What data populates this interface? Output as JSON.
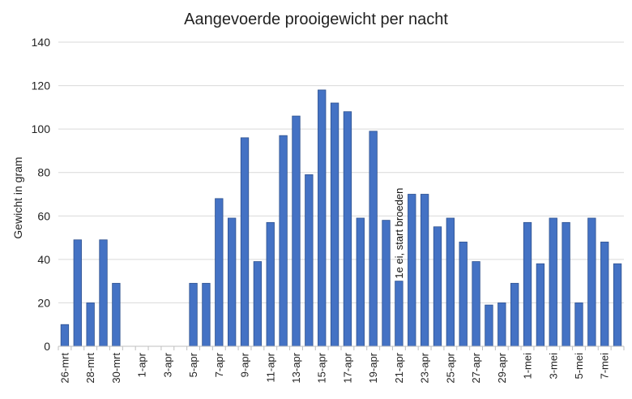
{
  "chart_data": {
    "type": "bar",
    "title": "Aangevoerde prooigewicht per nacht",
    "xlabel": "",
    "ylabel": "Gewicht in gram",
    "ylim": [
      0,
      140
    ],
    "yticks": [
      0,
      20,
      40,
      60,
      80,
      100,
      120,
      140
    ],
    "grid": true,
    "bar_color": "#4472C4",
    "bar_edge_color": "#2F528F",
    "categories": [
      "26-mrt",
      "27-mrt",
      "28-mrt",
      "29-mrt",
      "30-mrt",
      "31-mrt",
      "1-apr",
      "2-apr",
      "3-apr",
      "4-apr",
      "5-apr",
      "6-apr",
      "7-apr",
      "8-apr",
      "9-apr",
      "10-apr",
      "11-apr",
      "12-apr",
      "13-apr",
      "14-apr",
      "15-apr",
      "16-apr",
      "17-apr",
      "18-apr",
      "19-apr",
      "20-apr",
      "21-apr",
      "22-apr",
      "23-apr",
      "24-apr",
      "25-apr",
      "26-apr",
      "27-apr",
      "28-apr",
      "29-apr",
      "30-apr",
      "1-mei",
      "2-mei",
      "3-mei",
      "4-mei",
      "5-mei",
      "6-mei",
      "7-mei",
      "8-mei"
    ],
    "tick_labels": [
      "26-mrt",
      "",
      "28-mrt",
      "",
      "30-mrt",
      "",
      "1-apr",
      "",
      "3-apr",
      "",
      "5-apr",
      "",
      "7-apr",
      "",
      "9-apr",
      "",
      "11-apr",
      "",
      "13-apr",
      "",
      "15-apr",
      "",
      "17-apr",
      "",
      "19-apr",
      "",
      "21-apr",
      "",
      "23-apr",
      "",
      "25-apr",
      "",
      "27-apr",
      "",
      "29-apr",
      "",
      "1-mei",
      "",
      "3-mei",
      "",
      "5-mei",
      "",
      "7-mei",
      ""
    ],
    "values": [
      10,
      49,
      20,
      49,
      29,
      0,
      0,
      0,
      0,
      0,
      29,
      29,
      68,
      59,
      96,
      39,
      57,
      97,
      106,
      79,
      118,
      112,
      108,
      59,
      99,
      58,
      30,
      70,
      70,
      55,
      59,
      48,
      39,
      19,
      20,
      29,
      57,
      38,
      59,
      57,
      20,
      59,
      48,
      38
    ],
    "annotations": [
      {
        "text": "1e ei, start broeden",
        "category": "21-apr",
        "orientation": "vertical"
      }
    ]
  }
}
